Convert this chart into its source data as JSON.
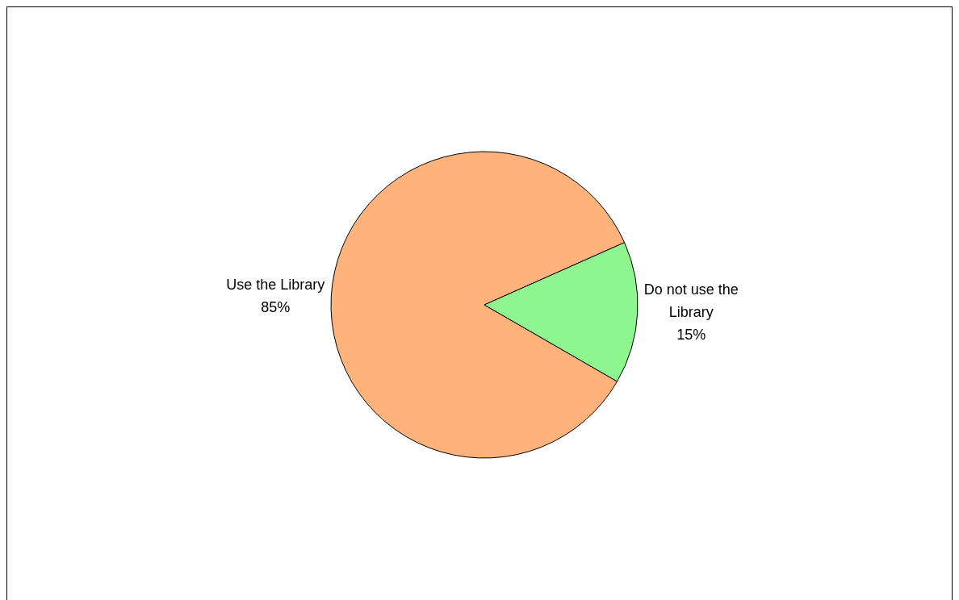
{
  "chart_data": {
    "type": "pie",
    "categories": [
      "Use the Library",
      "Do not use the Library"
    ],
    "values": [
      85,
      15
    ],
    "colors": [
      "#ffb27a",
      "#8ff58f"
    ],
    "value_labels": [
      "85%",
      "15%"
    ],
    "legend": false
  }
}
